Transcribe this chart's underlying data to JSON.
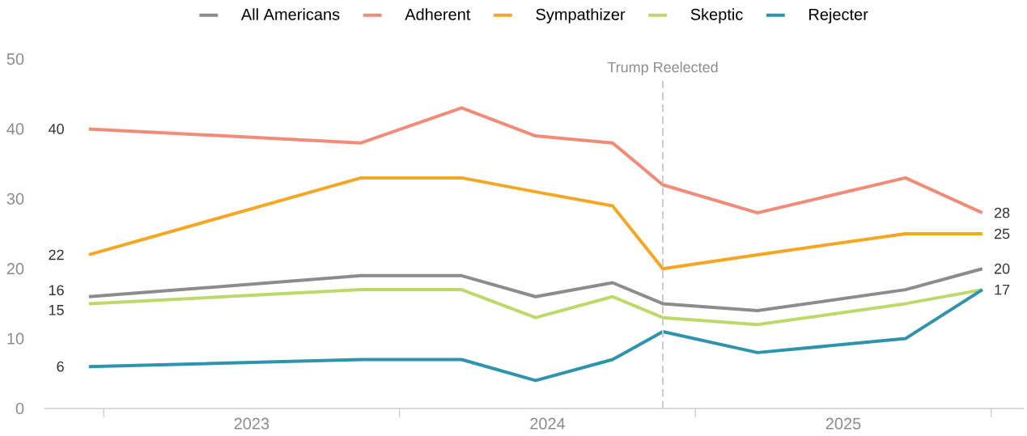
{
  "chart_data": {
    "type": "line",
    "x": [
      2022.95,
      2023.87,
      2024.21,
      2024.46,
      2024.72,
      2024.89,
      2025.21,
      2025.71,
      2025.97
    ],
    "series": [
      {
        "name": "All Americans",
        "color": "#8c8c8c",
        "values": [
          16,
          19,
          19,
          16,
          18,
          15,
          14,
          17,
          20
        ],
        "value_labels": [
          "16",
          null,
          null,
          null,
          null,
          null,
          null,
          null,
          "20"
        ]
      },
      {
        "name": "Adherent",
        "color": "#f28b77",
        "values": [
          40,
          38,
          43,
          39,
          38,
          32,
          28,
          33,
          28
        ],
        "value_labels": [
          "40",
          null,
          null,
          null,
          null,
          null,
          null,
          null,
          "28"
        ]
      },
      {
        "name": "Sympathizer",
        "color": "#f5a623",
        "values": [
          22,
          33,
          33,
          31,
          29,
          20,
          22,
          25,
          25
        ],
        "value_labels": [
          "22",
          null,
          null,
          null,
          null,
          null,
          null,
          null,
          "25"
        ]
      },
      {
        "name": "Skeptic",
        "color": "#bcd96a",
        "values": [
          15,
          17,
          17,
          13,
          16,
          13,
          12,
          15,
          17
        ],
        "value_labels": [
          "15",
          null,
          null,
          null,
          null,
          null,
          null,
          null,
          null
        ]
      },
      {
        "name": "Rejecter",
        "color": "#2e93ad",
        "values": [
          6,
          7,
          7,
          4,
          7,
          11,
          8,
          10,
          17
        ],
        "value_labels": [
          "6",
          null,
          null,
          null,
          null,
          null,
          null,
          null,
          "17"
        ]
      }
    ],
    "xlim": [
      2022.8,
      2026.11
    ],
    "xticks": [
      {
        "value": 2023,
        "label": null
      },
      {
        "value": 2023.5,
        "label": "2023"
      },
      {
        "value": 2024,
        "label": null
      },
      {
        "value": 2024.5,
        "label": "2024"
      },
      {
        "value": 2025,
        "label": null
      },
      {
        "value": 2025.5,
        "label": "2025"
      },
      {
        "value": 2026,
        "label": null
      }
    ],
    "ylim": [
      0,
      50
    ],
    "yticks": [
      0,
      10,
      20,
      30,
      40,
      50
    ],
    "ref_lines": [
      {
        "axis": "x",
        "value": 2024.89,
        "label": "Trump Reelected",
        "color": "#cccccc",
        "line_style": "dashed"
      }
    ],
    "legend": "top",
    "grid": false,
    "marker": "none",
    "line_style": "solid"
  }
}
